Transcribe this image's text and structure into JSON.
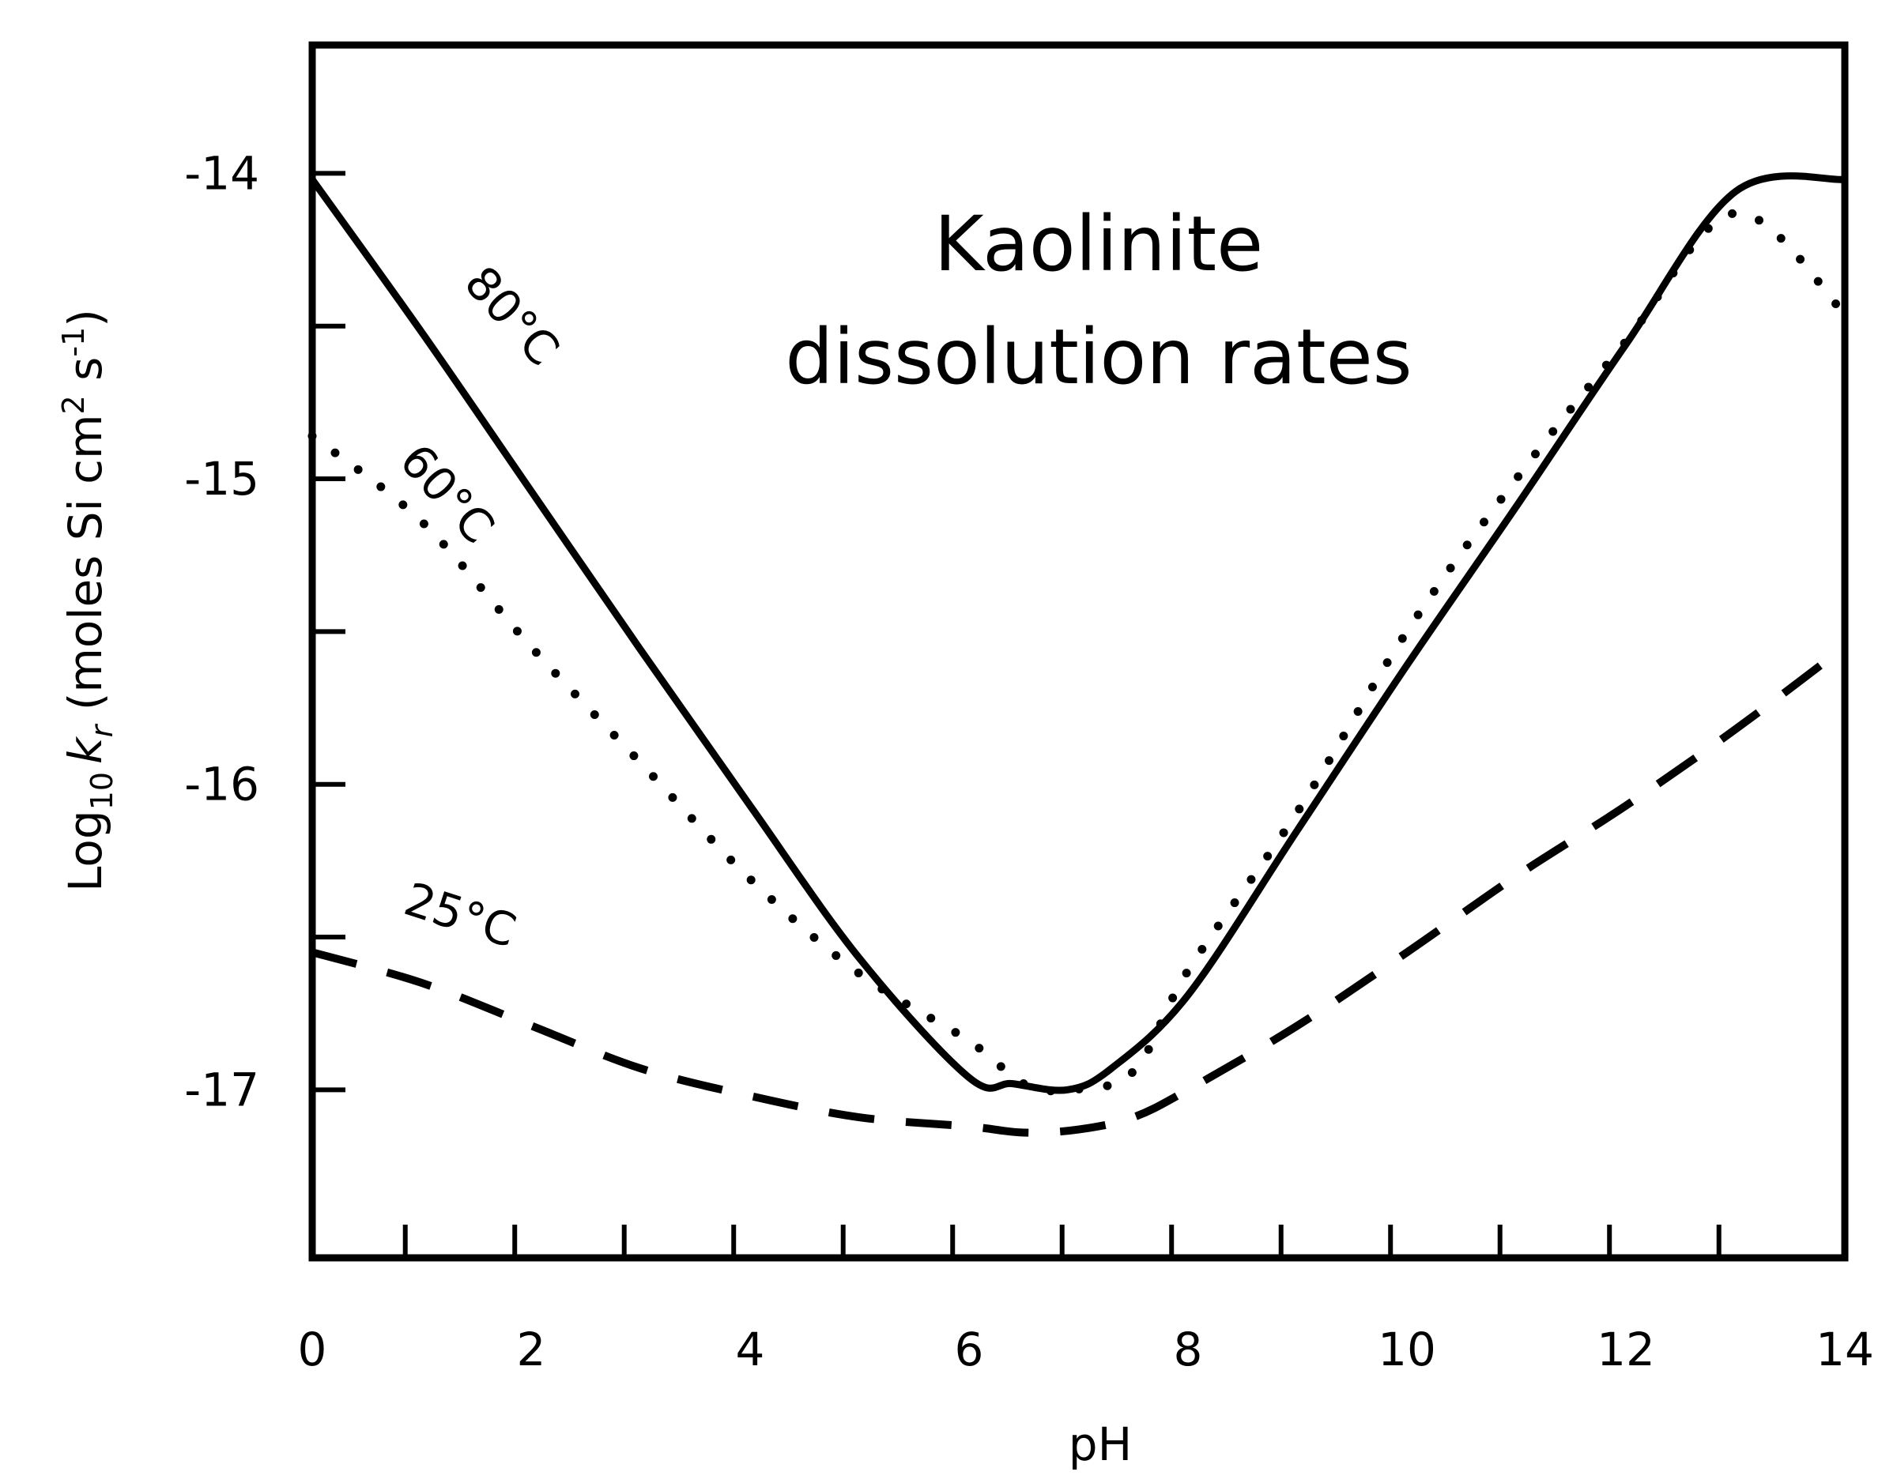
{
  "chart_data": {
    "type": "line",
    "title_lines": [
      "Kaolinite",
      "dissolution rates"
    ],
    "xlabel": "pH",
    "ylabel": {
      "prefix": "Log",
      "prefix_sub": "10",
      "var": "k",
      "var_sub": "r",
      "units_open": " (moles Si cm",
      "units_sup": "2",
      "units_mid": " s",
      "units_sup2": "-1",
      "units_close": ")"
    },
    "xlim": [
      0,
      14
    ],
    "ylim": [
      -17.55,
      -13.58
    ],
    "x_tick_labels": [
      "0",
      "2",
      "4",
      "6",
      "8",
      "10",
      "12",
      "14"
    ],
    "x_tick_label_values": [
      0,
      2,
      4,
      6,
      8,
      10,
      12,
      14
    ],
    "x_minor_ticks": [
      0.85,
      1.85,
      2.85,
      3.85,
      4.85,
      5.85,
      6.85,
      7.85,
      8.85,
      9.85,
      10.85,
      11.85,
      12.85
    ],
    "y_ticks": [
      -14,
      -14.5,
      -15,
      -15.5,
      -16,
      -16.5,
      -17
    ],
    "y_tick_labels": [
      "-14",
      "-15",
      "-16",
      "-17"
    ],
    "y_tick_label_values": [
      -14,
      -15,
      -16,
      -17
    ],
    "series": [
      {
        "name": "80°C",
        "style": "solid",
        "x": [
          0,
          1,
          2,
          3,
          4,
          5,
          6,
          6.4,
          6.9,
          7.3,
          8,
          9,
          10,
          11,
          12,
          13,
          14
        ],
        "y": [
          -14.02,
          -14.52,
          -15.04,
          -15.56,
          -16.07,
          -16.57,
          -16.96,
          -16.98,
          -17.0,
          -16.93,
          -16.69,
          -16.15,
          -15.61,
          -15.09,
          -14.56,
          -14.06,
          -14.02
        ]
      },
      {
        "name": "60°C",
        "style": "dotted",
        "x": [
          0,
          1,
          2,
          3,
          4,
          5,
          6,
          6.5,
          6.9,
          7.5,
          8,
          9,
          10,
          11,
          12,
          13,
          14
        ],
        "y": [
          -14.86,
          -15.14,
          -15.55,
          -15.93,
          -16.31,
          -16.62,
          -16.84,
          -16.98,
          -17.0,
          -16.94,
          -16.61,
          -16.09,
          -15.5,
          -15.0,
          -14.55,
          -14.13,
          -14.46
        ]
      },
      {
        "name": "25°C",
        "style": "dashed",
        "x": [
          0,
          1,
          2,
          3,
          4,
          5,
          6,
          6.5,
          7,
          7.5,
          8,
          9,
          10,
          11,
          12,
          13,
          14
        ],
        "y": [
          -16.55,
          -16.65,
          -16.79,
          -16.93,
          -17.02,
          -17.09,
          -17.12,
          -17.14,
          -17.13,
          -17.09,
          -17.0,
          -16.79,
          -16.55,
          -16.3,
          -16.07,
          -15.82,
          -15.55
        ]
      }
    ],
    "label_style": "inline-rotated",
    "grid": false,
    "legend": "none"
  }
}
